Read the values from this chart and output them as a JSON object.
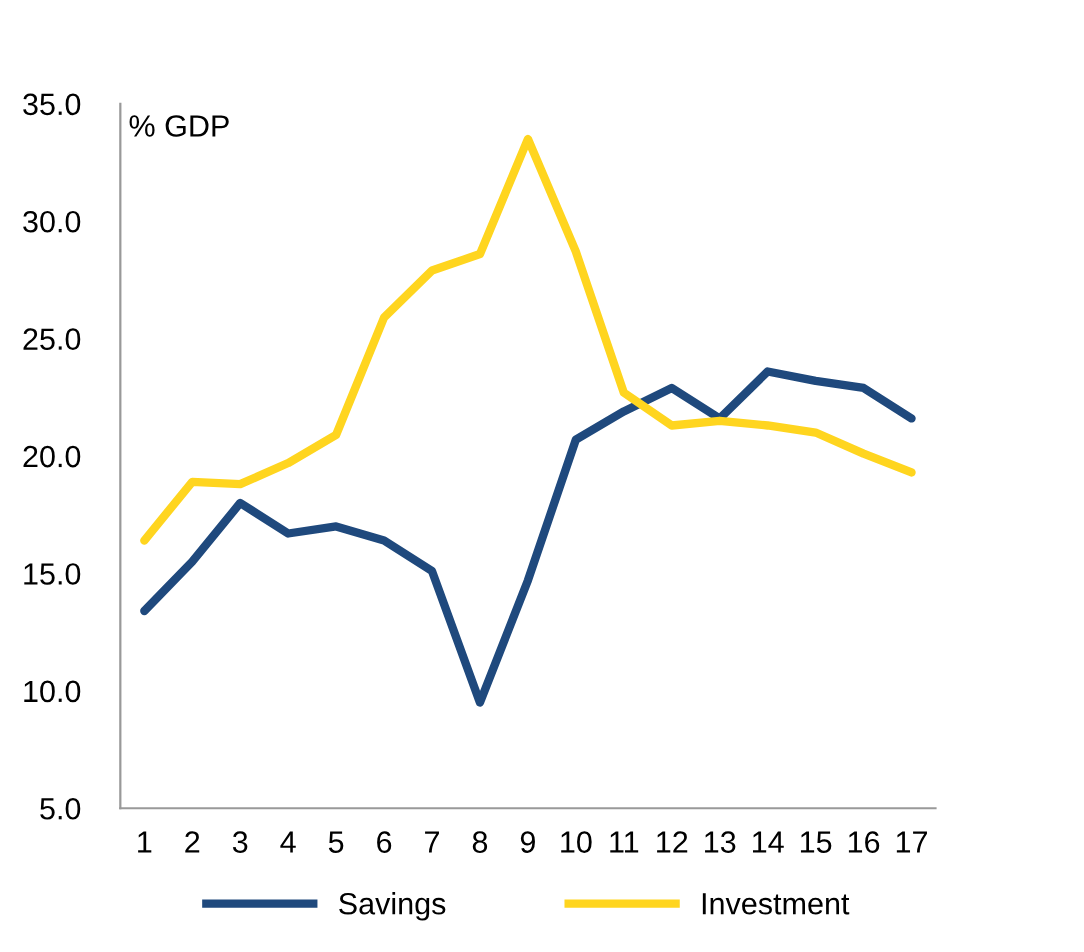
{
  "chart_data": {
    "type": "line",
    "ylabel": "% GDP",
    "categories": [
      "1",
      "2",
      "3",
      "4",
      "5",
      "6",
      "7",
      "8",
      "9",
      "10",
      "11",
      "12",
      "13",
      "14",
      "15",
      "16",
      "17"
    ],
    "series": [
      {
        "name": "Savings",
        "color": "#1f497d",
        "values": [
          13.4,
          15.5,
          18.0,
          16.7,
          17.0,
          16.4,
          15.1,
          9.5,
          14.7,
          20.7,
          21.9,
          22.9,
          21.6,
          23.6,
          23.2,
          22.9,
          21.6
        ]
      },
      {
        "name": "Investment",
        "color": "#ffd51f",
        "values": [
          16.4,
          18.9,
          18.8,
          19.7,
          20.9,
          25.9,
          27.9,
          28.6,
          33.5,
          28.7,
          22.7,
          21.3,
          21.5,
          21.3,
          21.0,
          20.1,
          19.3
        ]
      }
    ],
    "ylim": [
      5,
      35
    ],
    "yticks": [
      {
        "value": 5,
        "label": "5.0"
      },
      {
        "value": 10,
        "label": "10.0"
      },
      {
        "value": 15,
        "label": "15.0"
      },
      {
        "value": 20,
        "label": "20.0"
      },
      {
        "value": 25,
        "label": "25.0"
      },
      {
        "value": 30,
        "label": "30.0"
      },
      {
        "value": 35,
        "label": "35.0"
      }
    ],
    "grid": false,
    "legend": "bottom",
    "marker": "none",
    "line_style": "solid"
  }
}
